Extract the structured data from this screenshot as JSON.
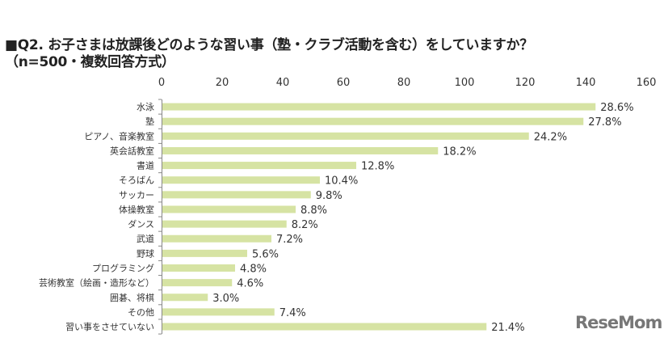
{
  "title_line1": "■Q2. お子さまは放課後どのような習い事（塾・クラブ活動を含む）をしていますか？",
  "title_line2": "（n=500・複数回答方式）",
  "logo_text": "ReseMom",
  "chart_data": {
    "type": "bar",
    "orientation": "horizontal",
    "title": "■Q2. お子さまは放課後どのような習い事（塾・クラブ活動を含む）をしていますか？（n=500・複数回答方式）",
    "categories": [
      "水泳",
      "塾",
      "ピアノ、音楽教室",
      "英会話教室",
      "書道",
      "そろばん",
      "サッカー",
      "体操教室",
      "ダンス",
      "武道",
      "野球",
      "プログラミング",
      "芸術教室（絵画・造形など）",
      "囲碁、将棋",
      "その他",
      "習い事をさせていない"
    ],
    "values": [
      143,
      139,
      121,
      91,
      64,
      52,
      49,
      44,
      41,
      36,
      28,
      24,
      23,
      15,
      37,
      107
    ],
    "data_labels": [
      "28.6%",
      "27.8%",
      "24.2%",
      "18.2%",
      "12.8%",
      "10.4%",
      "9.8%",
      "8.8%",
      "8.2%",
      "7.2%",
      "5.6%",
      "4.8%",
      "4.6%",
      "3.0%",
      "7.4%",
      "21.4%"
    ],
    "xlim": [
      0,
      160
    ],
    "xticks": [
      0,
      20,
      40,
      60,
      80,
      100,
      120,
      140,
      160
    ],
    "xaxis_position": "top",
    "grid": false,
    "bar_color": "#d6e3a3"
  }
}
